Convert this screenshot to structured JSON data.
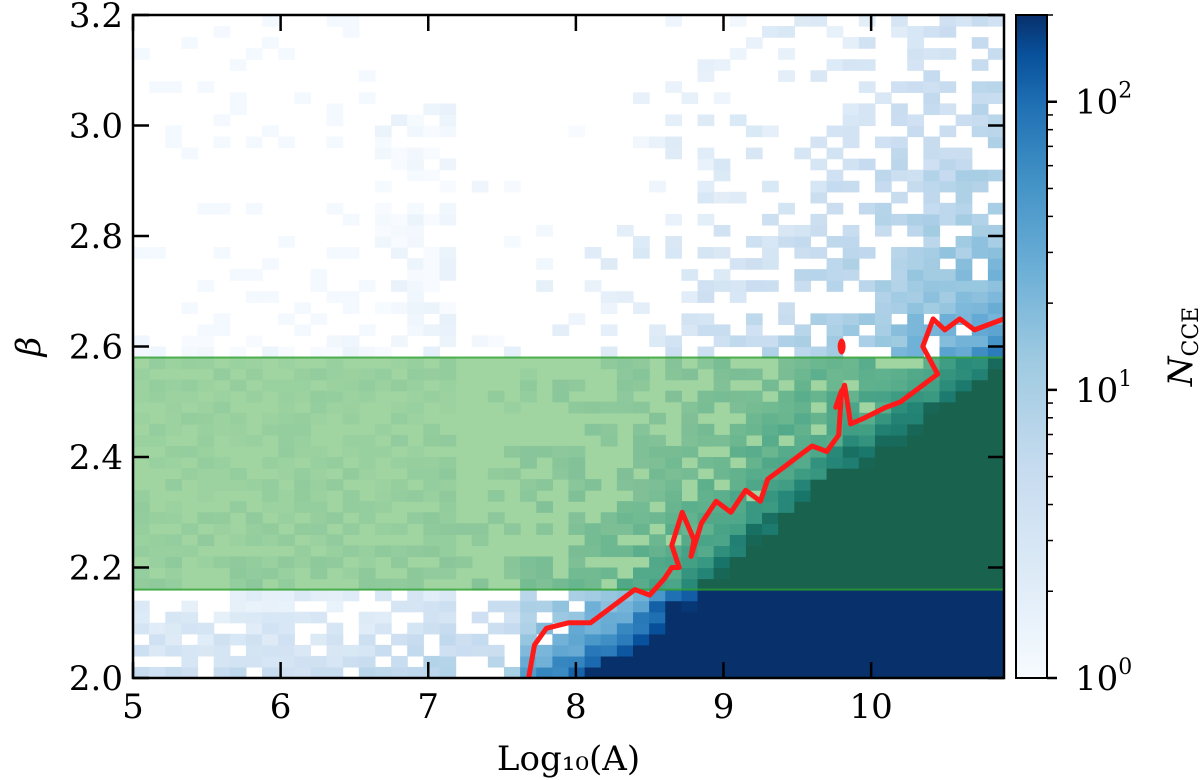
{
  "chart_data": {
    "type": "heatmap",
    "xlabel": "Log₁₀(A)",
    "ylabel": "β",
    "xlim": [
      5.0,
      10.9
    ],
    "ylim": [
      2.0,
      3.2
    ],
    "x_ticks": [
      "5",
      "6",
      "7",
      "8",
      "9",
      "10"
    ],
    "y_ticks": [
      "2.0",
      "2.2",
      "2.4",
      "2.6",
      "2.8",
      "3.0",
      "3.2"
    ],
    "colorbar": {
      "label": "N_CCE",
      "scale": "log",
      "range": [
        1,
        200
      ],
      "tick_labels": [
        {
          "base": "10",
          "exp": "0"
        },
        {
          "base": "10",
          "exp": "1"
        },
        {
          "base": "10",
          "exp": "2"
        }
      ],
      "colormap": "Blues"
    },
    "grid": {
      "x_bins": 54,
      "y_bins": 60,
      "density_regions": [
        {
          "region": "Log10(A) < 7, all β",
          "approx_count": "1"
        },
        {
          "region": "Log10(A) 7–9, β < 2.15",
          "approx_count": "2–50"
        },
        {
          "region": "Log10(A) > 8.5, β < 2.15",
          "approx_count": "≥ 200"
        },
        {
          "region": "Log10(A) > 9.5, β 2.6–3.0",
          "approx_count": "10–100"
        }
      ]
    },
    "shaded_band": {
      "y_range": [
        2.16,
        2.58
      ],
      "color": "#2ca02c",
      "opacity": 0.45
    },
    "contour": {
      "color": "#ff1a1a",
      "points": [
        [
          7.68,
          2.0
        ],
        [
          7.72,
          2.06
        ],
        [
          7.8,
          2.09
        ],
        [
          7.95,
          2.1
        ],
        [
          8.1,
          2.1
        ],
        [
          8.2,
          2.12
        ],
        [
          8.3,
          2.14
        ],
        [
          8.4,
          2.16
        ],
        [
          8.5,
          2.15
        ],
        [
          8.6,
          2.18
        ],
        [
          8.65,
          2.2
        ],
        [
          8.7,
          2.2
        ],
        [
          8.65,
          2.24
        ],
        [
          8.72,
          2.3
        ],
        [
          8.8,
          2.25
        ],
        [
          8.78,
          2.22
        ],
        [
          8.85,
          2.28
        ],
        [
          8.95,
          2.32
        ],
        [
          9.05,
          2.3
        ],
        [
          9.15,
          2.34
        ],
        [
          9.25,
          2.32
        ],
        [
          9.3,
          2.36
        ],
        [
          9.4,
          2.38
        ],
        [
          9.5,
          2.4
        ],
        [
          9.6,
          2.42
        ],
        [
          9.7,
          2.41
        ],
        [
          9.78,
          2.44
        ],
        [
          9.8,
          2.52
        ],
        [
          9.76,
          2.49
        ],
        [
          9.82,
          2.53
        ],
        [
          9.85,
          2.48
        ],
        [
          9.86,
          2.46
        ],
        [
          9.95,
          2.47
        ],
        [
          10.1,
          2.49
        ],
        [
          10.2,
          2.5
        ],
        [
          10.3,
          2.52
        ],
        [
          10.45,
          2.55
        ],
        [
          10.35,
          2.6
        ],
        [
          10.42,
          2.65
        ],
        [
          10.5,
          2.63
        ],
        [
          10.6,
          2.65
        ],
        [
          10.7,
          2.63
        ],
        [
          10.8,
          2.64
        ],
        [
          10.9,
          2.65
        ]
      ],
      "island": {
        "x": 9.8,
        "y": 2.6
      }
    }
  }
}
